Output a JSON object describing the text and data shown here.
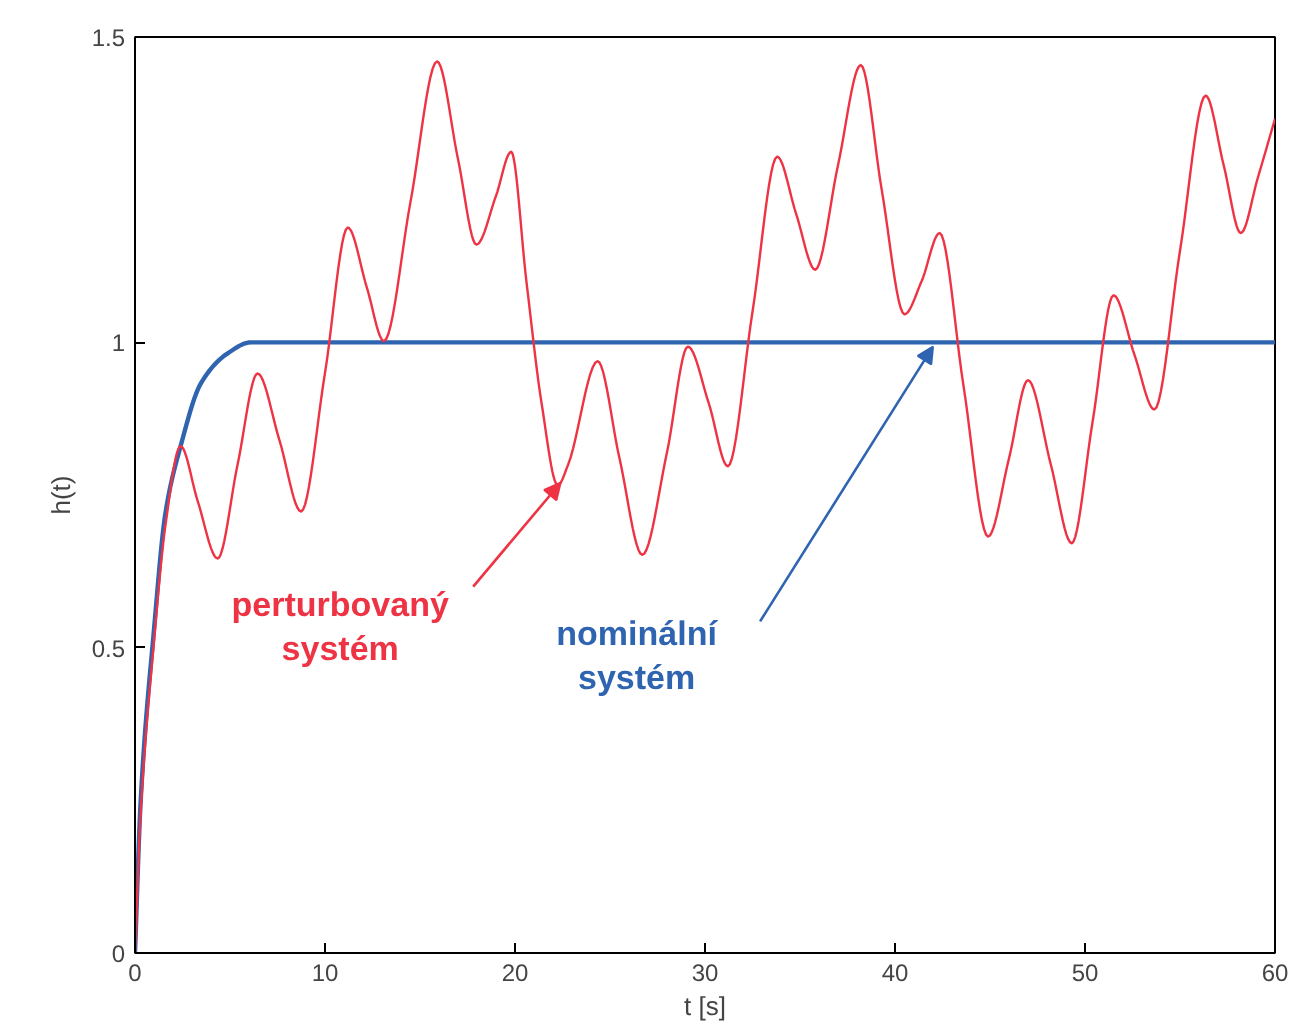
{
  "chart_data": {
    "type": "line",
    "xlabel": "t [s]",
    "ylabel": "h(t)",
    "xlim": [
      0,
      60
    ],
    "ylim": [
      0,
      1.5
    ],
    "xticks": [
      0,
      10,
      20,
      30,
      40,
      50,
      60
    ],
    "yticks": [
      0,
      {
        "value": 0.5,
        "label": "0.5"
      },
      1,
      {
        "value": 1.5,
        "label": "1.5"
      }
    ],
    "grid": false,
    "marker": "none",
    "line_style": "solid",
    "series": [
      {
        "color": "#ee3344",
        "x": [
          0,
          0.3,
          1.0,
          1.6,
          2.4,
          3.3,
          4.35,
          5.4,
          6.45,
          7.6,
          8.74,
          10.0,
          11.2,
          12.2,
          13.1,
          14.5,
          15.9,
          17.0,
          17.97,
          19.0,
          19.8,
          20.6,
          21.4,
          22.25,
          22.8,
          24.35,
          25.5,
          26.7,
          28.0,
          29.1,
          30.2,
          31.2,
          32.5,
          33.8,
          34.8,
          35.8,
          37.0,
          38.2,
          39.3,
          40.5,
          41.4,
          42.35,
          43.6,
          44.9,
          46.0,
          47.0,
          48.2,
          49.3,
          50.4,
          51.5,
          52.6,
          53.65,
          55.0,
          56.35,
          57.3,
          58.2,
          59.1,
          60
        ],
        "values": [
          0,
          0.23,
          0.51,
          0.7,
          0.83,
          0.74,
          0.646,
          0.8,
          0.949,
          0.84,
          0.723,
          0.95,
          1.188,
          1.09,
          1.002,
          1.23,
          1.46,
          1.3,
          1.16,
          1.24,
          1.312,
          1.1,
          0.9,
          0.766,
          0.8,
          0.969,
          0.81,
          0.652,
          0.82,
          0.993,
          0.9,
          0.797,
          1.05,
          1.304,
          1.21,
          1.119,
          1.29,
          1.454,
          1.25,
          1.046,
          1.1,
          1.179,
          0.93,
          0.682,
          0.81,
          0.938,
          0.8,
          0.671,
          0.87,
          1.077,
          0.98,
          0.89,
          1.15,
          1.404,
          1.29,
          1.179,
          1.27,
          1.366
        ]
      },
      {
        "color": "#2f64b0",
        "x": [
          0,
          0.3,
          1.0,
          1.6,
          2.4,
          3.47,
          4.88,
          6.1,
          60
        ],
        "values": [
          0,
          0.25,
          0.53,
          0.72,
          0.83,
          0.933,
          0.982,
          1.0,
          1.0
        ]
      }
    ],
    "annotations": [
      {
        "text": "perturbovaný systém",
        "x": 22.4,
        "y": 0.77
      },
      {
        "text": "nominální systém",
        "x": 42,
        "y": 0.993
      }
    ]
  }
}
